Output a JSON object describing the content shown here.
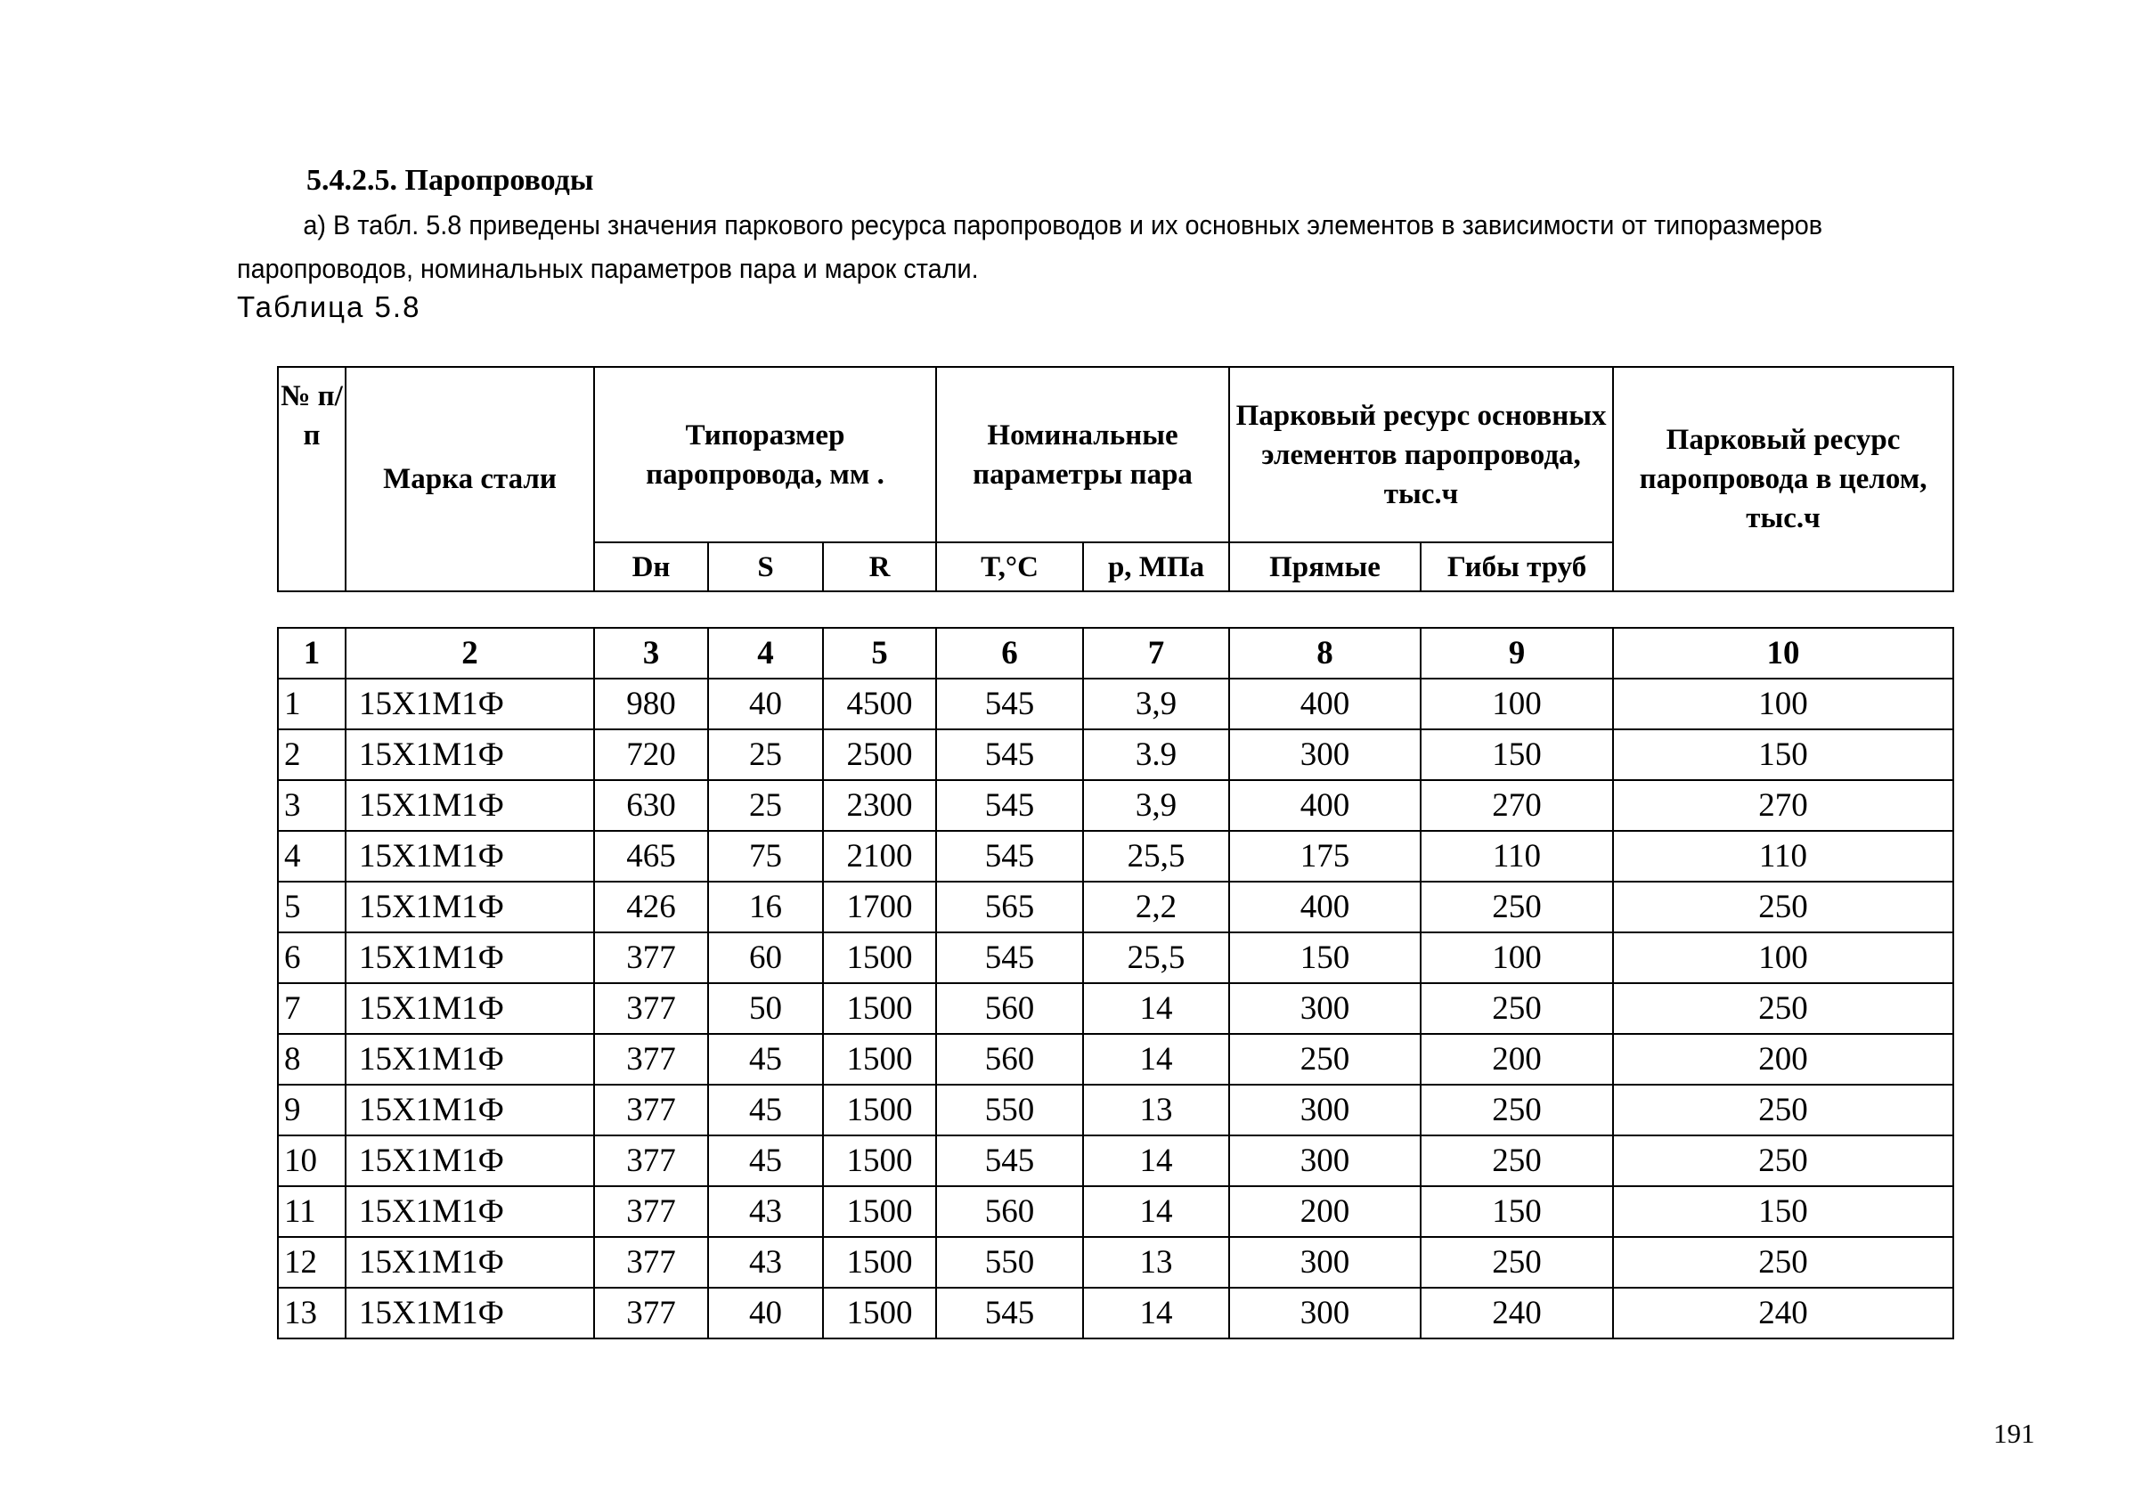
{
  "section_heading": "5.4.2.5. Паропроводы",
  "paragraph": "а) В табл. 5.8 приведены значения паркового ресурса паропроводов и их основных элементов в зависимости от типоразмеров паропроводов, номинальных параметров пара и марок стали.",
  "table_caption": "Таблица 5.8",
  "table_header": {
    "num": "№ п/п",
    "steel": "Марка стали",
    "size": "Типоразмер паропровода, мм .",
    "params": "Номинальные параметры пара",
    "elements": "Парковый ресурс основных элементов паропровода, тыс.ч",
    "total": "Парковый ресурс паропровода в целом, тыс.ч",
    "dn": "Dн",
    "s": "S",
    "r": "R",
    "t": "T,°С",
    "p": "р, МПа",
    "straight": "Прямые",
    "bends": "Гибы труб"
  },
  "column_numbers": [
    "1",
    "2",
    "3",
    "4",
    "5",
    "6",
    "7",
    "8",
    "9",
    "10"
  ],
  "rows": [
    [
      "1",
      "15Х1М1Ф",
      "980",
      "40",
      "4500",
      "545",
      "3,9",
      "400",
      "100",
      "100"
    ],
    [
      "2",
      "15Х1М1Ф",
      "720",
      "25",
      "2500",
      "545",
      "3.9",
      "300",
      "150",
      "150"
    ],
    [
      "3",
      "15Х1М1Ф",
      "630",
      "25",
      "2300",
      "545",
      "3,9",
      "400",
      "270",
      "270"
    ],
    [
      "4",
      "15Х1М1Ф",
      "465",
      "75",
      "2100",
      "545",
      "25,5",
      "175",
      "110",
      "110"
    ],
    [
      "5",
      "15Х1М1Ф",
      "426",
      "16",
      "1700",
      "565",
      "2,2",
      "400",
      "250",
      "250"
    ],
    [
      "6",
      "15Х1М1Ф",
      "377",
      "60",
      "1500",
      "545",
      "25,5",
      "150",
      "100",
      "100"
    ],
    [
      "7",
      "15Х1М1Ф",
      "377",
      "50",
      "1500",
      "560",
      "14",
      "300",
      "250",
      "250"
    ],
    [
      "8",
      "15Х1М1Ф",
      "377",
      "45",
      "1500",
      "560",
      "14",
      "250",
      "200",
      "200"
    ],
    [
      "9",
      "15Х1М1Ф",
      "377",
      "45",
      "1500",
      "550",
      "13",
      "300",
      "250",
      "250"
    ],
    [
      "10",
      "15Х1М1Ф",
      "377",
      "45",
      "1500",
      "545",
      "14",
      "300",
      "250",
      "250"
    ],
    [
      "11",
      "15Х1М1Ф",
      "377",
      "43",
      "1500",
      "560",
      "14",
      "200",
      "150",
      "150"
    ],
    [
      "12",
      "15Х1М1Ф",
      "377",
      "43",
      "1500",
      "550",
      "13",
      "300",
      "250",
      "250"
    ],
    [
      "13",
      "15Х1М1Ф",
      "377",
      "40",
      "1500",
      "545",
      "14",
      "300",
      "240",
      "240"
    ]
  ],
  "page_number": "191"
}
